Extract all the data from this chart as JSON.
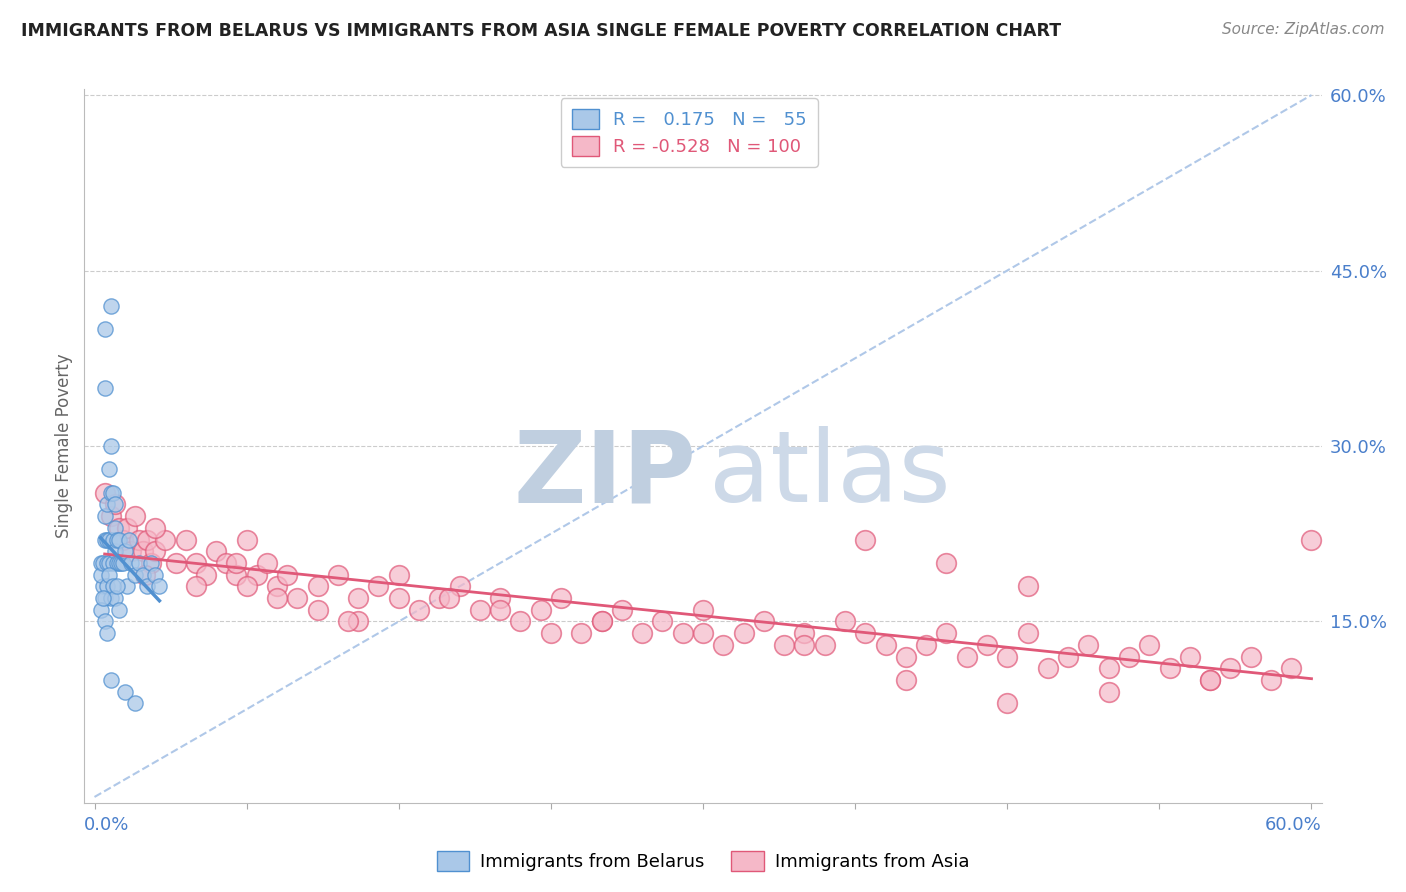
{
  "title": "IMMIGRANTS FROM BELARUS VS IMMIGRANTS FROM ASIA SINGLE FEMALE POVERTY CORRELATION CHART",
  "source": "Source: ZipAtlas.com",
  "ylabel": "Single Female Poverty",
  "r_belarus": 0.175,
  "n_belarus": 55,
  "r_asia": -0.528,
  "n_asia": 100,
  "legend_belarus": "Immigrants from Belarus",
  "legend_asia": "Immigrants from Asia",
  "color_belarus": "#aac8e8",
  "color_asia": "#f5b8c8",
  "line_color_belarus": "#5090d0",
  "line_color_asia": "#e05878",
  "dash_line_color": "#b0c8e8",
  "right_yticks": [
    0.15,
    0.3,
    0.45,
    0.6
  ],
  "right_ytick_labels": [
    "15.0%",
    "30.0%",
    "45.0%",
    "60.0%"
  ],
  "watermark_zip_color": "#c5d5e8",
  "watermark_atlas_color": "#c5d5e8",
  "background_color": "#ffffff",
  "xlim": [
    0.0,
    0.6
  ],
  "ylim": [
    0.0,
    0.6
  ],
  "bel_scatter_x": [
    0.008,
    0.005,
    0.005,
    0.003,
    0.004,
    0.003,
    0.004,
    0.005,
    0.005,
    0.006,
    0.006,
    0.006,
    0.007,
    0.007,
    0.007,
    0.008,
    0.008,
    0.009,
    0.009,
    0.009,
    0.01,
    0.01,
    0.01,
    0.011,
    0.011,
    0.012,
    0.012,
    0.013,
    0.014,
    0.015,
    0.016,
    0.017,
    0.018,
    0.02,
    0.022,
    0.024,
    0.026,
    0.028,
    0.03,
    0.032,
    0.005,
    0.006,
    0.007,
    0.008,
    0.009,
    0.01,
    0.011,
    0.012,
    0.003,
    0.004,
    0.005,
    0.006,
    0.008,
    0.015,
    0.02
  ],
  "bel_scatter_y": [
    0.42,
    0.35,
    0.4,
    0.2,
    0.18,
    0.19,
    0.2,
    0.22,
    0.24,
    0.2,
    0.22,
    0.25,
    0.2,
    0.22,
    0.28,
    0.26,
    0.3,
    0.2,
    0.22,
    0.26,
    0.21,
    0.23,
    0.25,
    0.2,
    0.22,
    0.2,
    0.22,
    0.2,
    0.2,
    0.21,
    0.18,
    0.22,
    0.2,
    0.19,
    0.2,
    0.19,
    0.18,
    0.2,
    0.19,
    0.18,
    0.17,
    0.18,
    0.19,
    0.17,
    0.18,
    0.17,
    0.18,
    0.16,
    0.16,
    0.17,
    0.15,
    0.14,
    0.1,
    0.09,
    0.08
  ],
  "asia_scatter_x": [
    0.005,
    0.008,
    0.01,
    0.012,
    0.014,
    0.016,
    0.018,
    0.02,
    0.022,
    0.024,
    0.026,
    0.028,
    0.03,
    0.035,
    0.04,
    0.045,
    0.05,
    0.055,
    0.06,
    0.065,
    0.07,
    0.075,
    0.08,
    0.085,
    0.09,
    0.095,
    0.1,
    0.11,
    0.12,
    0.13,
    0.14,
    0.15,
    0.16,
    0.17,
    0.18,
    0.19,
    0.2,
    0.21,
    0.22,
    0.23,
    0.24,
    0.25,
    0.26,
    0.27,
    0.28,
    0.29,
    0.3,
    0.31,
    0.32,
    0.33,
    0.34,
    0.35,
    0.36,
    0.37,
    0.38,
    0.39,
    0.4,
    0.41,
    0.42,
    0.43,
    0.44,
    0.45,
    0.46,
    0.47,
    0.48,
    0.49,
    0.5,
    0.51,
    0.52,
    0.53,
    0.54,
    0.55,
    0.56,
    0.57,
    0.58,
    0.59,
    0.6,
    0.03,
    0.05,
    0.07,
    0.09,
    0.11,
    0.13,
    0.15,
    0.2,
    0.25,
    0.3,
    0.35,
    0.4,
    0.45,
    0.5,
    0.55,
    0.025,
    0.075,
    0.125,
    0.175,
    0.225,
    0.38,
    0.42,
    0.46
  ],
  "asia_scatter_y": [
    0.26,
    0.24,
    0.25,
    0.23,
    0.22,
    0.23,
    0.21,
    0.24,
    0.22,
    0.21,
    0.22,
    0.2,
    0.21,
    0.22,
    0.2,
    0.22,
    0.2,
    0.19,
    0.21,
    0.2,
    0.19,
    0.22,
    0.19,
    0.2,
    0.18,
    0.19,
    0.17,
    0.18,
    0.19,
    0.17,
    0.18,
    0.19,
    0.16,
    0.17,
    0.18,
    0.16,
    0.17,
    0.15,
    0.16,
    0.17,
    0.14,
    0.15,
    0.16,
    0.14,
    0.15,
    0.14,
    0.16,
    0.13,
    0.14,
    0.15,
    0.13,
    0.14,
    0.13,
    0.15,
    0.14,
    0.13,
    0.12,
    0.13,
    0.14,
    0.12,
    0.13,
    0.12,
    0.14,
    0.11,
    0.12,
    0.13,
    0.11,
    0.12,
    0.13,
    0.11,
    0.12,
    0.1,
    0.11,
    0.12,
    0.1,
    0.11,
    0.22,
    0.23,
    0.18,
    0.2,
    0.17,
    0.16,
    0.15,
    0.17,
    0.16,
    0.15,
    0.14,
    0.13,
    0.1,
    0.08,
    0.09,
    0.1,
    0.19,
    0.18,
    0.15,
    0.17,
    0.14,
    0.22,
    0.2,
    0.18
  ]
}
